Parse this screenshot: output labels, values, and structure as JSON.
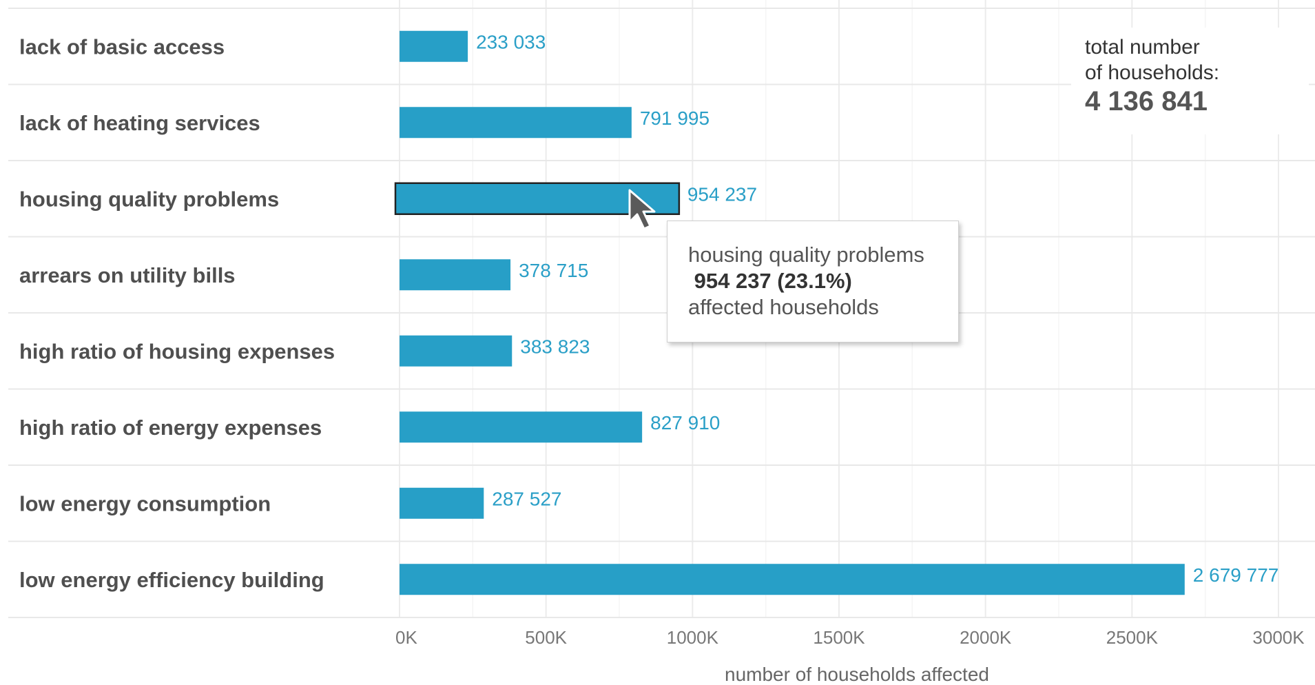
{
  "chart_data": {
    "type": "bar",
    "orientation": "horizontal",
    "categories": [
      "lack of basic access",
      "lack of heating services",
      "housing quality problems",
      "arrears on utility bills",
      "high ratio of housing expenses",
      "high ratio of energy expenses",
      "low energy consumption",
      "low energy efficiency building"
    ],
    "values": [
      233033,
      791995,
      954237,
      378715,
      383823,
      827910,
      287527,
      2679777
    ],
    "value_labels": [
      "233 033",
      "791 995",
      "954 237",
      "378 715",
      "383 823",
      "827 910",
      "287 527",
      "2 679 777"
    ],
    "xlabel": "number of households affected",
    "xlim": [
      0,
      3000000
    ],
    "xticks": [
      0,
      500000,
      1000000,
      1500000,
      2000000,
      2500000,
      3000000
    ],
    "xtick_labels": [
      "0K",
      "500K",
      "1000K",
      "1500K",
      "2000K",
      "2500K",
      "3000K"
    ],
    "grid": true,
    "bar_color": "#279fc7",
    "highlighted_index": 2
  },
  "total": {
    "line1": "total number",
    "line2": "of households:",
    "value": "4 136 841"
  },
  "tooltip": {
    "category": "housing quality problems",
    "value_line": " 954 237 (23.1%)",
    "suffix": "affected households"
  },
  "cursor_icon": "arrow-pointer-icon"
}
